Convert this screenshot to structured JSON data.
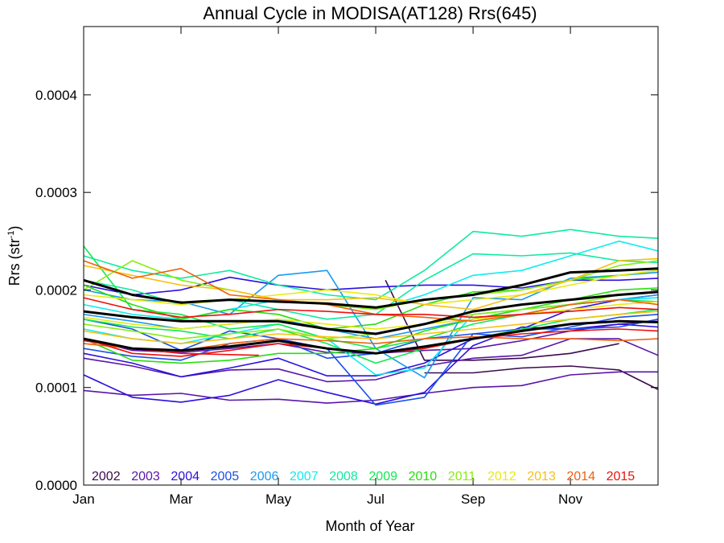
{
  "chart_data": {
    "type": "line",
    "title": "Annual Cycle in MODISA(AT128) Rrs(645)",
    "xlabel": "Month of Year",
    "ylabel_main": "Rrs (str",
    "ylabel_sup": "-1",
    "ylabel_close": ")",
    "xlim": [
      1,
      12.8
    ],
    "ylim": [
      0.0,
      0.00047
    ],
    "x_ticks": [
      {
        "value": 1,
        "label": "Jan"
      },
      {
        "value": 3,
        "label": "Mar"
      },
      {
        "value": 5,
        "label": "May"
      },
      {
        "value": 7,
        "label": "Jul"
      },
      {
        "value": 9,
        "label": "Sep"
      },
      {
        "value": 11,
        "label": "Nov"
      }
    ],
    "y_ticks": [
      {
        "value": 0.0,
        "label": "0.0000"
      },
      {
        "value": 0.0001,
        "label": "0.0001"
      },
      {
        "value": 0.0002,
        "label": "0.0002"
      },
      {
        "value": 0.0003,
        "label": "0.0003"
      },
      {
        "value": 0.0004,
        "label": "0.0004"
      }
    ],
    "legend_placement": "bottom",
    "years": [
      {
        "label": "2002",
        "color": "#3c0a4e"
      },
      {
        "label": "2003",
        "color": "#5a15a8"
      },
      {
        "label": "2004",
        "color": "#2a10e0"
      },
      {
        "label": "2005",
        "color": "#1a50ea"
      },
      {
        "label": "2006",
        "color": "#1a9aee"
      },
      {
        "label": "2007",
        "color": "#10ecf0"
      },
      {
        "label": "2008",
        "color": "#10eaa0"
      },
      {
        "label": "2009",
        "color": "#10ea50"
      },
      {
        "label": "2010",
        "color": "#28dd10"
      },
      {
        "label": "2011",
        "color": "#88ee10"
      },
      {
        "label": "2012",
        "color": "#e8ea10"
      },
      {
        "label": "2013",
        "color": "#f8c010"
      },
      {
        "label": "2014",
        "color": "#f06010"
      },
      {
        "label": "2015",
        "color": "#ee1010"
      }
    ],
    "series": [
      {
        "color": "#3c0a4e",
        "x": [
          7.2,
          8.0,
          9.0,
          10.0,
          11.0,
          12.0
        ],
        "y": [
          0.00021,
          0.000128,
          0.000128,
          0.00013,
          0.000135,
          0.000145
        ]
      },
      {
        "color": "#3c0a4e",
        "x": [
          8.0,
          9.0,
          10.0,
          11.0,
          12.0,
          12.8
        ],
        "y": [
          0.000115,
          0.000115,
          0.00012,
          0.000122,
          0.000118,
          9.8e-05
        ]
      },
      {
        "color": "#5a15a8",
        "x": [
          1,
          2,
          3,
          4,
          5,
          6,
          7,
          8,
          9,
          10,
          11,
          12,
          12.8
        ],
        "y": [
          9.7e-05,
          9.2e-05,
          9.4e-05,
          8.7e-05,
          8.8e-05,
          8.4e-05,
          8.7e-05,
          9.4e-05,
          0.0001,
          0.000102,
          0.000113,
          0.000116,
          0.000116
        ]
      },
      {
        "color": "#5a15a8",
        "x": [
          1,
          2,
          3,
          4,
          5,
          6,
          7,
          8,
          9,
          10,
          11,
          12,
          12.8
        ],
        "y": [
          0.00013,
          0.000122,
          0.000111,
          0.000118,
          0.000119,
          0.000106,
          0.000108,
          0.000122,
          0.00013,
          0.000133,
          0.00015,
          0.00015,
          0.000133
        ]
      },
      {
        "color": "#5a15a8",
        "x": [
          1,
          2,
          3,
          4,
          5,
          6,
          7,
          8,
          9,
          10,
          11,
          12,
          12.8
        ],
        "y": [
          0.00015,
          0.000138,
          0.000136,
          0.00014,
          0.000145,
          0.000136,
          0.000135,
          0.000138,
          0.00014,
          0.000148,
          0.000158,
          0.000165,
          0.000168
        ]
      },
      {
        "color": "#2a10e0",
        "x": [
          1,
          2,
          3,
          4,
          5,
          6,
          7,
          8,
          9,
          10,
          11,
          12,
          12.8
        ],
        "y": [
          0.000113,
          9e-05,
          8.5e-05,
          9.2e-05,
          0.000108,
          9.5e-05,
          8.3e-05,
          9.5e-05,
          0.000143,
          0.000162,
          0.00016,
          0.000165,
          0.000162
        ]
      },
      {
        "color": "#2a10e0",
        "x": [
          1,
          2,
          3,
          4,
          5,
          6,
          7,
          8,
          9,
          10,
          11,
          12,
          12.8
        ],
        "y": [
          0.000135,
          0.000125,
          0.000111,
          0.00012,
          0.00013,
          0.000112,
          0.000112,
          0.000125,
          0.00015,
          0.00016,
          0.00018,
          0.00019,
          0.000195
        ]
      },
      {
        "color": "#2a10e0",
        "x": [
          1,
          2,
          3,
          4,
          5,
          6,
          7,
          8,
          9,
          10,
          11,
          12,
          12.8
        ],
        "y": [
          0.000205,
          0.000195,
          0.0002,
          0.000213,
          0.000205,
          0.0002,
          0.000203,
          0.000205,
          0.000205,
          0.000202,
          0.00021,
          0.00021,
          0.000212
        ]
      },
      {
        "color": "#1a50ea",
        "x": [
          1,
          2,
          3,
          4,
          5,
          6,
          7,
          8,
          9,
          10,
          11,
          12,
          12.8
        ],
        "y": [
          0.00014,
          0.000132,
          0.000128,
          0.000145,
          0.00015,
          0.00013,
          0.000135,
          0.00015,
          0.000155,
          0.00016,
          0.00016,
          0.000162,
          0.00017
        ]
      },
      {
        "color": "#1a50ea",
        "x": [
          1,
          2,
          3,
          4,
          5,
          6,
          7,
          8,
          9,
          10,
          11,
          12,
          12.8
        ],
        "y": [
          0.00017,
          0.00016,
          0.000138,
          0.000158,
          0.00015,
          0.00014,
          8.2e-05,
          9e-05,
          0.000155,
          0.000152,
          0.000162,
          0.000172,
          0.000175
        ]
      },
      {
        "color": "#1a9aee",
        "x": [
          1,
          2,
          3,
          4,
          5,
          6,
          7,
          8,
          9,
          10,
          11,
          12,
          12.8
        ],
        "y": [
          0.0002,
          0.00019,
          0.000188,
          0.000175,
          0.000215,
          0.00022,
          0.00014,
          0.00011,
          0.000192,
          0.00019,
          0.000212,
          0.000215,
          0.000218
        ]
      },
      {
        "color": "#1a9aee",
        "x": [
          1,
          2,
          3,
          4,
          5,
          6,
          7,
          8,
          9,
          10,
          11,
          12,
          12.8
        ],
        "y": [
          0.000175,
          0.000168,
          0.00016,
          0.000165,
          0.00017,
          0.00016,
          0.00015,
          0.00016,
          0.00017,
          0.00018,
          0.000185,
          0.00019,
          0.000195
        ]
      },
      {
        "color": "#10ecf0",
        "x": [
          1,
          2,
          3,
          4,
          5,
          6,
          7,
          8,
          9,
          10,
          11,
          12,
          12.8
        ],
        "y": [
          0.000185,
          0.000175,
          0.00017,
          0.00018,
          0.00019,
          0.000185,
          0.00018,
          0.000195,
          0.000215,
          0.00022,
          0.000235,
          0.00025,
          0.00024
        ]
      },
      {
        "color": "#10ecf0",
        "x": [
          1,
          2,
          3,
          4,
          5,
          6,
          7,
          8,
          9,
          10,
          11,
          12,
          12.8
        ],
        "y": [
          0.00016,
          0.00015,
          0.000145,
          0.000155,
          0.000165,
          0.00015,
          0.000113,
          0.00012,
          0.000175,
          0.00018,
          0.000185,
          0.00019,
          0.000192
        ]
      },
      {
        "color": "#10eaa0",
        "x": [
          1,
          2,
          3,
          4,
          5,
          6,
          7,
          8,
          9,
          10,
          11,
          12,
          12.8
        ],
        "y": [
          0.000235,
          0.00022,
          0.000212,
          0.00022,
          0.000205,
          0.000195,
          0.00019,
          0.00022,
          0.00026,
          0.000255,
          0.000262,
          0.000255,
          0.000253
        ]
      },
      {
        "color": "#10eaa0",
        "x": [
          1,
          2,
          3,
          4,
          5,
          6,
          7,
          8,
          9,
          10,
          11,
          12,
          12.8
        ],
        "y": [
          0.00021,
          0.0002,
          0.000185,
          0.00019,
          0.00018,
          0.00017,
          0.000175,
          0.00021,
          0.000237,
          0.000235,
          0.000238,
          0.00023,
          0.000228
        ]
      },
      {
        "color": "#10ea50",
        "x": [
          1,
          2,
          3,
          4,
          5,
          6,
          7,
          8,
          9,
          10,
          11,
          12,
          12.8
        ],
        "y": [
          0.000245,
          0.00018,
          0.000175,
          0.00016,
          0.000165,
          0.00015,
          0.00014,
          0.00015,
          0.000165,
          0.000175,
          0.000185,
          0.00019,
          0.000188
        ]
      },
      {
        "color": "#10ea50",
        "x": [
          1,
          2,
          3,
          4,
          5,
          6,
          7,
          8,
          9,
          10,
          11,
          12,
          12.8
        ],
        "y": [
          0.00017,
          0.000162,
          0.000158,
          0.00015,
          0.00016,
          0.000145,
          0.000125,
          0.00014,
          0.00015,
          0.00016,
          0.00017,
          0.000175,
          0.00018
        ]
      },
      {
        "color": "#28dd10",
        "x": [
          1,
          2,
          3,
          4,
          5,
          6,
          7,
          8,
          9,
          10,
          11,
          12,
          12.8
        ],
        "y": [
          0.00015,
          0.000128,
          0.000125,
          0.000128,
          0.000135,
          0.000135,
          0.00014,
          0.000158,
          0.00017,
          0.00018,
          0.00019,
          0.0002,
          0.000202
        ]
      },
      {
        "color": "#28dd10",
        "x": [
          1,
          2,
          3,
          4,
          5,
          6,
          7,
          8,
          9,
          10,
          11,
          12,
          12.8
        ],
        "y": [
          0.000205,
          0.000185,
          0.00017,
          0.00018,
          0.000175,
          0.00016,
          0.000165,
          0.000185,
          0.000198,
          0.0002,
          0.00021,
          0.000215,
          0.00022
        ]
      },
      {
        "color": "#88ee10",
        "x": [
          1,
          2,
          3,
          4,
          5,
          6,
          7,
          8,
          9,
          10,
          11,
          12,
          12.8
        ],
        "y": [
          0.0002,
          0.00023,
          0.00021,
          0.0002,
          0.00019,
          0.000185,
          0.00018,
          0.00019,
          0.000195,
          0.0002,
          0.00021,
          0.000225,
          0.00023
        ]
      },
      {
        "color": "#88ee10",
        "x": [
          1,
          2,
          3,
          4,
          5,
          6,
          7,
          8,
          9,
          10,
          11,
          12,
          12.8
        ],
        "y": [
          0.000165,
          0.000158,
          0.00015,
          0.000155,
          0.00016,
          0.00015,
          0.000155,
          0.000165,
          0.000175,
          0.00018,
          0.000185,
          0.000195,
          0.000198
        ]
      },
      {
        "color": "#e8ea10",
        "x": [
          1,
          2,
          3,
          4,
          5,
          6,
          7,
          8,
          9,
          10,
          11,
          12,
          12.8
        ],
        "y": [
          0.000195,
          0.00019,
          0.000185,
          0.00019,
          0.000195,
          0.0002,
          0.000195,
          0.000185,
          0.00019,
          0.000195,
          0.000205,
          0.000215,
          0.00022
        ]
      },
      {
        "color": "#e8ea10",
        "x": [
          1,
          2,
          3,
          4,
          5,
          6,
          7,
          8,
          9,
          10,
          11,
          12,
          12.8
        ],
        "y": [
          0.000172,
          0.000165,
          0.00016,
          0.000165,
          0.00017,
          0.000165,
          0.00016,
          0.000165,
          0.00017,
          0.000175,
          0.00018,
          0.000185,
          0.000188
        ]
      },
      {
        "color": "#f8c010",
        "x": [
          1,
          2,
          3,
          4,
          5,
          6,
          7,
          8,
          9,
          10,
          11,
          12,
          12.8
        ],
        "y": [
          0.000225,
          0.000215,
          0.000205,
          0.0002,
          0.00019,
          0.00019,
          0.000192,
          0.000185,
          0.00018,
          0.000195,
          0.00021,
          0.00023,
          0.000232
        ]
      },
      {
        "color": "#f8c010",
        "x": [
          1,
          2,
          3,
          4,
          5,
          6,
          7,
          8,
          9,
          10,
          11,
          12,
          12.8
        ],
        "y": [
          0.000158,
          0.00015,
          0.000145,
          0.00015,
          0.000155,
          0.000152,
          0.00015,
          0.000155,
          0.00016,
          0.000165,
          0.00017,
          0.000175,
          0.000178
        ]
      },
      {
        "color": "#f06010",
        "x": [
          1,
          2,
          3,
          4,
          5,
          6,
          7,
          8,
          9,
          10,
          11,
          12,
          12.8
        ],
        "y": [
          0.00023,
          0.000212,
          0.000222,
          0.000195,
          0.00019,
          0.000185,
          0.000175,
          0.000172,
          0.000168,
          0.000175,
          0.000185,
          0.00019,
          0.000185
        ]
      },
      {
        "color": "#f06010",
        "x": [
          1,
          2,
          3,
          4,
          5,
          6,
          7,
          8,
          9,
          10,
          11,
          12,
          12.8
        ],
        "y": [
          0.000145,
          0.00014,
          0.000138,
          0.000145,
          0.00015,
          0.000148,
          0.000145,
          0.00015,
          0.000152,
          0.00015,
          0.00015,
          0.000148,
          0.00015
        ]
      },
      {
        "color": "#ee1010",
        "x": [
          1,
          2,
          3,
          4,
          5,
          6,
          7,
          8,
          9,
          10,
          11,
          12,
          12.8
        ],
        "y": [
          0.000192,
          0.00018,
          0.000172,
          0.000175,
          0.00018,
          0.000178,
          0.000175,
          0.000175,
          0.000172,
          0.000175,
          0.000178,
          0.000182,
          0.00018
        ]
      },
      {
        "color": "#ee1010",
        "x": [
          1,
          2,
          3,
          4,
          5,
          6,
          7,
          8,
          9,
          10,
          11,
          12,
          12.8
        ],
        "y": [
          0.00015,
          0.000135,
          0.000132,
          0.000138,
          0.000145,
          0.00014,
          0.000135,
          0.00014,
          0.00015,
          0.000155,
          0.000158,
          0.00016,
          0.000158
        ]
      },
      {
        "color": "#ee1010",
        "x": [
          1,
          2,
          3,
          4.6
        ],
        "y": [
          0.000148,
          0.00014,
          0.000135,
          0.000133
        ]
      },
      {
        "color": "#000000",
        "width": 3,
        "x": [
          1,
          2,
          3,
          4,
          5,
          6,
          7,
          8,
          9,
          10,
          11,
          12,
          12.8
        ],
        "y": [
          0.00021,
          0.000195,
          0.000187,
          0.00019,
          0.000188,
          0.000186,
          0.000182,
          0.00019,
          0.000195,
          0.000205,
          0.000218,
          0.00022,
          0.000222
        ]
      },
      {
        "color": "#000000",
        "width": 3,
        "x": [
          1,
          2,
          3,
          4,
          5,
          6,
          7,
          8,
          9,
          10,
          11,
          12,
          12.8
        ],
        "y": [
          0.000178,
          0.000172,
          0.000168,
          0.000168,
          0.000168,
          0.00016,
          0.000155,
          0.000165,
          0.000178,
          0.000185,
          0.00019,
          0.000195,
          0.000198
        ]
      },
      {
        "color": "#000000",
        "width": 3,
        "x": [
          1,
          2,
          3,
          4,
          5,
          6,
          7,
          8,
          9,
          10,
          11,
          12,
          12.8
        ],
        "y": [
          0.00015,
          0.00014,
          0.000138,
          0.000142,
          0.000148,
          0.00014,
          0.000135,
          0.000142,
          0.00015,
          0.000158,
          0.000165,
          0.000168,
          0.000167
        ]
      }
    ]
  }
}
